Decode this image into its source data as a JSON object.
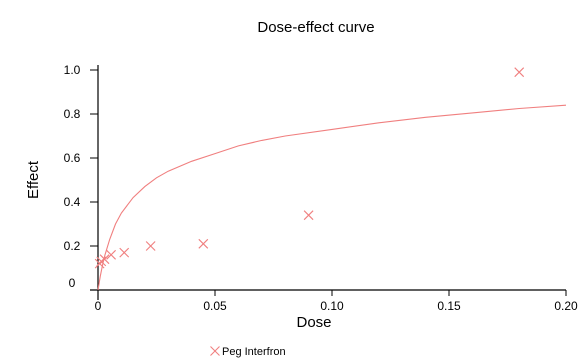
{
  "chart_data": {
    "type": "scatter",
    "title": "Dose-effect curve",
    "xlabel": "Dose",
    "ylabel": "Effect",
    "xlim": [
      0,
      0.2
    ],
    "ylim": [
      0,
      1.0
    ],
    "x_ticks": [
      0,
      0.05,
      0.1,
      0.15,
      0.2
    ],
    "x_tick_labels": [
      "0",
      "0.05",
      "0.10",
      "0.15",
      "0.20"
    ],
    "y_ticks": [
      0,
      0.2,
      0.4,
      0.6,
      0.8,
      1.0
    ],
    "y_tick_labels": [
      "0",
      "0.2",
      "0.4",
      "0.6",
      "0.8",
      "1.0"
    ],
    "grid": false,
    "legend_position": "bottom-left",
    "series": [
      {
        "name": "Peg Interfron",
        "marker": "x",
        "color": "#f07f7f",
        "x": [
          0.0007,
          0.0014,
          0.0028,
          0.0056,
          0.0112,
          0.0225,
          0.045,
          0.09,
          0.18
        ],
        "y": [
          0.12,
          0.13,
          0.14,
          0.16,
          0.17,
          0.2,
          0.21,
          0.34,
          0.99
        ]
      }
    ],
    "fit_curve": {
      "color": "#f07f7f",
      "x": [
        0,
        0.0005,
        0.001,
        0.002,
        0.003,
        0.005,
        0.0075,
        0.01,
        0.015,
        0.02,
        0.025,
        0.03,
        0.04,
        0.05,
        0.06,
        0.07,
        0.08,
        0.1,
        0.12,
        0.14,
        0.16,
        0.18,
        0.2
      ],
      "y": [
        0,
        0.033,
        0.063,
        0.117,
        0.16,
        0.23,
        0.3,
        0.35,
        0.42,
        0.47,
        0.51,
        0.54,
        0.585,
        0.62,
        0.655,
        0.68,
        0.7,
        0.73,
        0.76,
        0.785,
        0.805,
        0.825,
        0.84
      ]
    }
  }
}
